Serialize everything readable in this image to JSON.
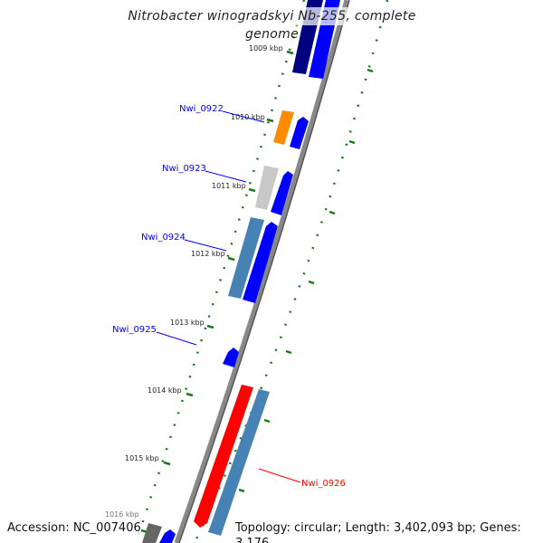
{
  "title": "Nitrobacter winogradskyi Nb-255, complete genome",
  "footer": {
    "accession": "Accession: NC_007406",
    "summary": "Topology: circular; Length: 3,402,093 bp; Genes: 3,176"
  },
  "ticks": [
    "1009 kbp",
    "1010 kbp",
    "1011 kbp",
    "1012 kbp",
    "1013 kbp",
    "1014 kbp",
    "1015 kbp",
    "1016 kbp"
  ],
  "genes": [
    {
      "label": "Nwi_0922",
      "color": "#0000ff"
    },
    {
      "label": "Nwi_0923",
      "color": "#0000ff"
    },
    {
      "label": "Nwi_0924",
      "color": "#0000ff"
    },
    {
      "label": "Nwi_0925",
      "color": "#0000ff"
    },
    {
      "label": "Nwi_0926",
      "color": "#ff0000"
    }
  ],
  "colors": {
    "backbone": "#888888",
    "tick": "#1a7a1a",
    "cds": "#0000ff",
    "navy": "#000080",
    "orange": "#ff8c00",
    "gray": "#c8c8c8",
    "steel": "#4682b4",
    "red": "#ff0000",
    "dark": "#666666"
  }
}
